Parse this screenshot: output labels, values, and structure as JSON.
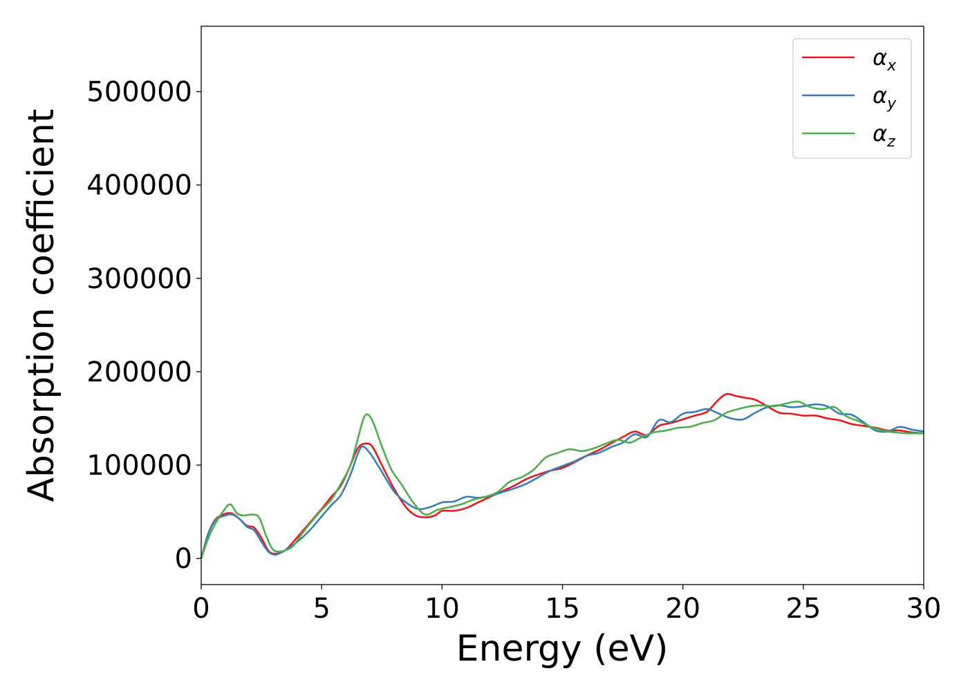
{
  "chart_data": {
    "type": "line",
    "xlabel": "Energy (eV)",
    "ylabel": "Absorption coefficient",
    "xlim": [
      0,
      30
    ],
    "ylim": [
      -28000,
      570000
    ],
    "xticks": [
      0,
      5,
      10,
      15,
      20,
      25,
      30
    ],
    "xtick_labels": [
      "0",
      "5",
      "10",
      "15",
      "20",
      "25",
      "30"
    ],
    "yticks": [
      0,
      100000,
      200000,
      300000,
      400000,
      500000
    ],
    "ytick_labels": [
      "0",
      "100000",
      "200000",
      "300000",
      "400000",
      "500000"
    ],
    "grid": false,
    "legend_position": "top-right",
    "series": [
      {
        "name": "α",
        "name_sub": "x",
        "color": "#e41a1c",
        "x": [
          0,
          0.3,
          0.6,
          1.0,
          1.3,
          1.6,
          1.9,
          2.2,
          2.5,
          2.8,
          3.1,
          3.5,
          4.0,
          4.5,
          5.0,
          5.4,
          5.8,
          6.2,
          6.5,
          6.8,
          7.1,
          7.5,
          8.0,
          8.5,
          8.9,
          9.3,
          9.7,
          10.0,
          10.5,
          11.0,
          11.5,
          12.0,
          12.5,
          13.0,
          13.5,
          14.0,
          14.5,
          15.0,
          15.5,
          16.0,
          16.5,
          17.0,
          17.5,
          18.0,
          18.5,
          19.0,
          19.5,
          20.0,
          20.5,
          21.0,
          21.4,
          21.8,
          22.2,
          22.6,
          23.0,
          23.5,
          24.0,
          24.5,
          25.0,
          25.5,
          26.0,
          26.5,
          27.0,
          27.5,
          28.0,
          28.5,
          29.0,
          29.5,
          30.0
        ],
        "y": [
          0,
          27000,
          42000,
          48000,
          48000,
          42000,
          35000,
          33000,
          22000,
          8000,
          5000,
          9000,
          23000,
          38000,
          53000,
          66000,
          78000,
          100000,
          118000,
          123000,
          120000,
          100000,
          75000,
          55000,
          46000,
          44000,
          46000,
          51000,
          51000,
          54000,
          60000,
          66000,
          72000,
          78000,
          85000,
          90000,
          94000,
          97000,
          103000,
          110000,
          116000,
          123000,
          130000,
          136000,
          132000,
          142000,
          145000,
          149000,
          153000,
          157000,
          168000,
          176000,
          174000,
          172000,
          170000,
          163000,
          156000,
          155000,
          153000,
          153000,
          150000,
          148000,
          144000,
          142000,
          140000,
          137000,
          137000,
          135000,
          134000
        ]
      },
      {
        "name": "α",
        "name_sub": "y",
        "color": "#377eb8",
        "x": [
          0,
          0.3,
          0.6,
          1.0,
          1.3,
          1.6,
          1.9,
          2.2,
          2.5,
          2.8,
          3.1,
          3.5,
          4.0,
          4.5,
          5.0,
          5.4,
          5.8,
          6.2,
          6.5,
          6.7,
          7.0,
          7.4,
          8.0,
          8.5,
          9.0,
          9.5,
          10.0,
          10.5,
          11.0,
          11.5,
          12.0,
          12.5,
          13.0,
          13.5,
          14.0,
          14.5,
          15.0,
          15.5,
          16.0,
          16.5,
          17.0,
          17.5,
          18.0,
          18.5,
          19.0,
          19.5,
          20.0,
          20.5,
          21.0,
          21.5,
          22.0,
          22.5,
          23.0,
          23.5,
          24.0,
          24.5,
          25.0,
          25.5,
          26.0,
          26.5,
          27.0,
          27.5,
          28.0,
          28.5,
          29.0,
          29.5,
          30.0
        ],
        "y": [
          0,
          27000,
          41000,
          46000,
          47000,
          42000,
          34000,
          30000,
          18000,
          7000,
          4000,
          9000,
          18000,
          30000,
          45000,
          57000,
          68000,
          90000,
          112000,
          120000,
          113000,
          97000,
          72000,
          60000,
          53000,
          55000,
          60000,
          61000,
          66000,
          65000,
          67000,
          71000,
          75000,
          80000,
          87000,
          94000,
          99000,
          104000,
          110000,
          113000,
          119000,
          124000,
          133000,
          130000,
          148000,
          146000,
          155000,
          157000,
          160000,
          155000,
          150000,
          149000,
          156000,
          162000,
          164000,
          162000,
          163000,
          165000,
          163000,
          155000,
          154000,
          146000,
          137000,
          136000,
          141000,
          138000,
          136000
        ]
      },
      {
        "name": "α",
        "name_sub": "z",
        "color": "#4daf4a",
        "x": [
          0,
          0.3,
          0.6,
          0.9,
          1.2,
          1.5,
          1.8,
          2.1,
          2.4,
          2.7,
          3.0,
          3.4,
          3.8,
          4.2,
          4.6,
          5.0,
          5.4,
          5.8,
          6.2,
          6.5,
          6.8,
          7.1,
          7.5,
          7.9,
          8.3,
          8.8,
          9.3,
          9.8,
          10.3,
          10.8,
          11.3,
          11.8,
          12.3,
          12.8,
          13.3,
          13.8,
          14.3,
          14.8,
          15.3,
          15.8,
          16.3,
          16.8,
          17.3,
          17.8,
          18.3,
          18.8,
          19.3,
          19.8,
          20.3,
          20.8,
          21.3,
          21.8,
          22.3,
          22.8,
          23.3,
          23.8,
          24.3,
          24.8,
          25.3,
          25.8,
          26.3,
          26.8,
          27.3,
          27.8,
          28.3,
          28.8,
          29.3,
          30.0
        ],
        "y": [
          0,
          22000,
          38000,
          50000,
          58000,
          48000,
          46000,
          47000,
          44000,
          24000,
          9000,
          8000,
          13000,
          27000,
          40000,
          52000,
          63000,
          80000,
          100000,
          128000,
          153000,
          148000,
          120000,
          95000,
          80000,
          60000,
          47000,
          52000,
          55000,
          58000,
          63000,
          66000,
          71000,
          82000,
          87000,
          95000,
          108000,
          113000,
          117000,
          115000,
          118000,
          123000,
          127000,
          124000,
          130000,
          135000,
          137000,
          140000,
          141000,
          145000,
          148000,
          156000,
          160000,
          163000,
          164000,
          163000,
          166000,
          168000,
          162000,
          160000,
          162000,
          152000,
          147000,
          141000,
          137000,
          135000,
          134000,
          134000
        ]
      }
    ]
  }
}
